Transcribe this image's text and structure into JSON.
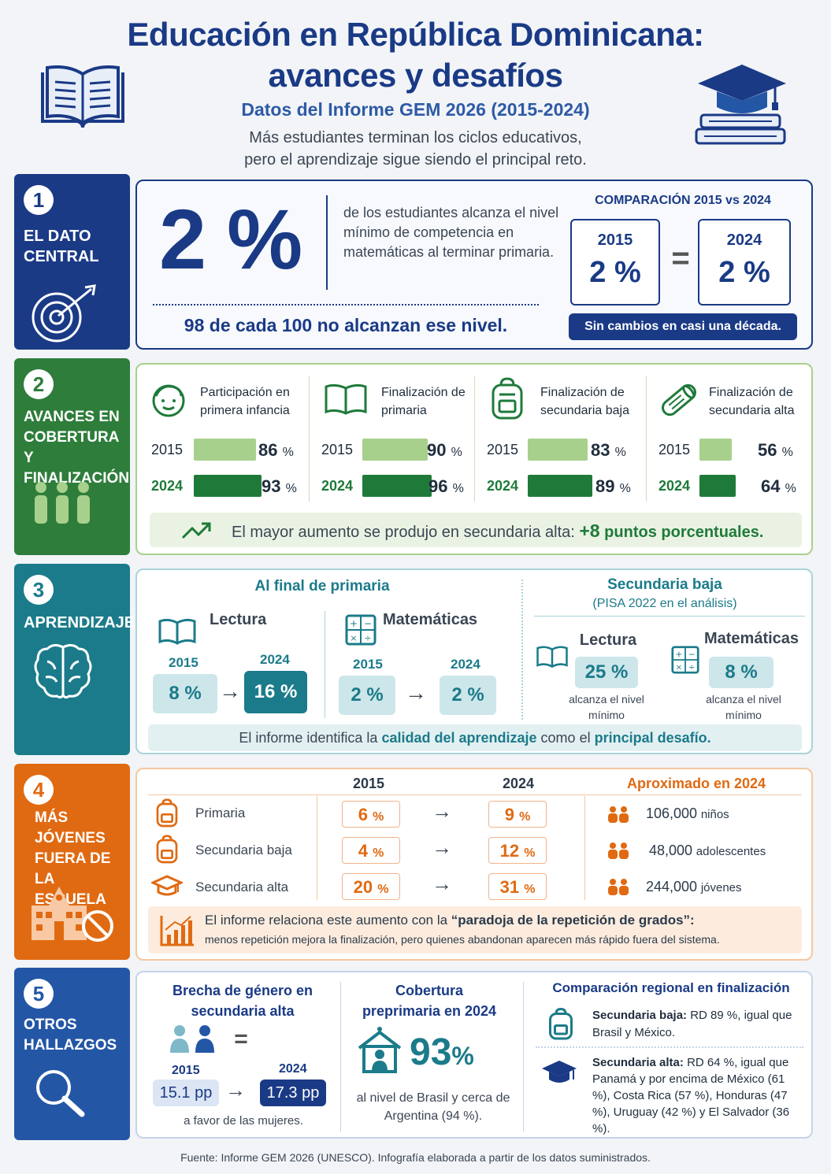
{
  "header": {
    "title_line1": "Educación en República Dominicana:",
    "title_line2": "avances y desafíos",
    "subtitle": "Datos del Informe GEM 2026 (2015-2024)",
    "tagline_line1": "Más estudiantes terminan los ciclos educativos,",
    "tagline_line2": "pero el aprendizaje sigue siendo el principal reto."
  },
  "section1": {
    "number": "1",
    "label": "EL DATO\nCENTRAL",
    "big_value": "2 %",
    "description": "de los estudiantes alcanza el nivel mínimo de competencia en matemáticas al terminar primaria.",
    "note": "98 de cada 100 no alcanzan ese nivel.",
    "comparison_title": "COMPARACIÓN 2015 vs 2024",
    "year_a": "2015",
    "value_a": "2 %",
    "equals": "=",
    "year_b": "2024",
    "value_b": "2 %",
    "badge": "Sin cambios en casi una década."
  },
  "section2": {
    "number": "2",
    "label": "AVANCES EN\nCOBERTURA Y\nFINALIZACIÓN",
    "year_a": "2015",
    "year_b": "2024",
    "cards": [
      {
        "title": "Participación en primera infancia",
        "icon": "child-face-icon",
        "v2015": 86,
        "v2024": 93,
        "l2015": "86",
        "l2024": "93"
      },
      {
        "title": "Finalización de primaria",
        "icon": "open-book-icon",
        "v2015": 90,
        "v2024": 96,
        "l2015": "90",
        "l2024": "96"
      },
      {
        "title": "Finalización de secundaria baja",
        "icon": "backpack-icon",
        "v2015": 83,
        "v2024": 89,
        "l2015": "83",
        "l2024": "89"
      },
      {
        "title": "Finalización de secundaria alta",
        "icon": "diploma-icon",
        "v2015": 56,
        "v2024": 64,
        "l2015": "56",
        "l2024": "64"
      }
    ],
    "pct_sign": "%",
    "highlight_text": "El mayor aumento se produjo en secundaria alta:",
    "highlight_value": "+8",
    "highlight_unit": "puntos porcentuales."
  },
  "section3": {
    "number": "3",
    "label": "APRENDIZAJE",
    "left_title": "Al final de primaria",
    "reading": "Lectura",
    "math": "Matemáticas",
    "year_a": "2015",
    "year_b": "2024",
    "reading_2015": "8 %",
    "reading_2024": "16 %",
    "math_2015": "2 %",
    "math_2024": "2 %",
    "right_title": "Secundaria baja",
    "right_subtitle": "(PISA 2022 en el análisis)",
    "sec_reading": "25 %",
    "sec_math": "8 %",
    "min_level": "alcanza el nivel mínimo",
    "footer_pre": "El informe identifica la",
    "footer_em1": "calidad del aprendizaje",
    "footer_mid": "como el",
    "footer_em2": "principal desafío."
  },
  "section4": {
    "number": "4",
    "label": "MÁS JÓVENES\nFUERA DE LA\nESCUELA",
    "col_2015": "2015",
    "col_2024": "2024",
    "col_approx": "Aproximado en 2024",
    "rows": [
      {
        "level": "Primaria",
        "v2015": "6",
        "v2024": "9",
        "count": "106,000",
        "who": "niños"
      },
      {
        "level": "Secundaria baja",
        "v2015": "4",
        "v2024": "12",
        "count": "48,000",
        "who": "adolescentes"
      },
      {
        "level": "Secundaria alta",
        "v2015": "20",
        "v2024": "31",
        "count": "244,000",
        "who": "jóvenes"
      }
    ],
    "pct_sign": "%",
    "note_line1_pre": "El informe relaciona este aumento con la",
    "note_line1_em": "“paradoja de la repetición de grados”:",
    "note_line2": "menos repetición mejora la finalización, pero quienes abandonan aparecen más rápido fuera del sistema."
  },
  "section5": {
    "number": "5",
    "label": "OTROS\nHALLAZGOS",
    "gap_title": "Brecha de género en secundaria alta",
    "equals": "=",
    "year_a": "2015",
    "year_b": "2024",
    "gap_2015": "15.1 pp",
    "gap_2024": "17.3 pp",
    "gap_note": "a favor de las mujeres.",
    "pre_title": "Cobertura preprimaria en 2024",
    "pre_value": "93",
    "pre_unit": "%",
    "pre_note": "al nivel de Brasil y cerca de Argentina (94 %).",
    "reg_title": "Comparación regional en finalización",
    "reg1_label": "Secundaria baja:",
    "reg1_text": "RD 89 %, igual que Brasil y México.",
    "reg2_label": "Secundaria alta:",
    "reg2_text": "RD 64 %, igual que Panamá y por encima de México (61 %), Costa Rica (57 %), Honduras (47 %), Uruguay (42 %) y El Salvador (36 %)."
  },
  "footer": "Fuente: Informe GEM 2026 (UNESCO). Infografía elaborada a partir de los datos suministrados.",
  "colors": {
    "navy": "#1a3a86",
    "green": "#2e7d3b",
    "teal": "#1b7b8a",
    "orange": "#e06a12",
    "blue": "#2456a6"
  }
}
